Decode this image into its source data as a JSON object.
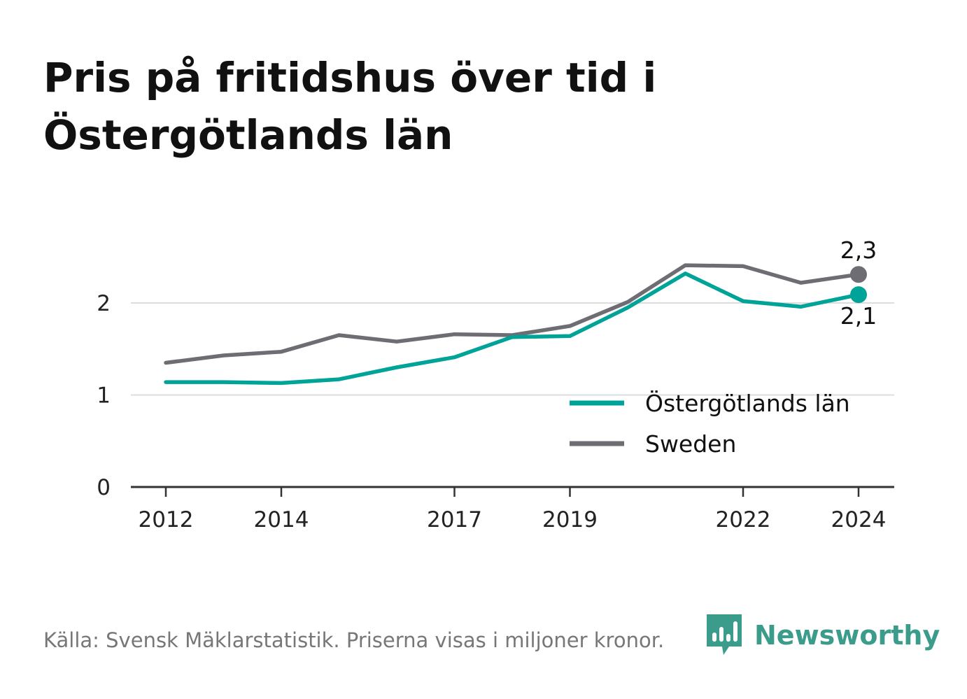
{
  "title_lines": [
    "Pris på fritidshus över tid i",
    "Östergötlands län"
  ],
  "source": "Källa: Svensk Mäklarstatistik. Priserna visas i miljoner kronor.",
  "brand": "Newsworthy",
  "colors": {
    "ostergotland": "#00a398",
    "sweden": "#6e6d73",
    "axis": "#333333",
    "grid": "#dddddd",
    "brand": "#3b9c8c"
  },
  "chart_data": {
    "type": "line",
    "title": "Pris på fritidshus över tid i Östergötlands län",
    "xlabel": "",
    "ylabel": "",
    "x": [
      2012,
      2013,
      2014,
      2015,
      2016,
      2017,
      2018,
      2019,
      2020,
      2021,
      2022,
      2023,
      2024
    ],
    "x_ticks": [
      "2012",
      "2014",
      "2017",
      "2019",
      "2022",
      "2024"
    ],
    "y_ticks": [
      "0",
      "1",
      "2"
    ],
    "ylim": [
      0,
      2.4
    ],
    "grid": "horizontal",
    "legend_position": "bottom-right",
    "series": [
      {
        "name": "Östergötlands län",
        "values": [
          1.14,
          1.14,
          1.13,
          1.17,
          1.3,
          1.41,
          1.63,
          1.64,
          1.95,
          2.32,
          2.02,
          1.96,
          2.09
        ],
        "end_label": "2,1"
      },
      {
        "name": "Sweden",
        "values": [
          1.35,
          1.43,
          1.47,
          1.65,
          1.58,
          1.66,
          1.65,
          1.75,
          2.01,
          2.41,
          2.4,
          2.22,
          2.31
        ],
        "end_label": "2,3"
      }
    ]
  }
}
